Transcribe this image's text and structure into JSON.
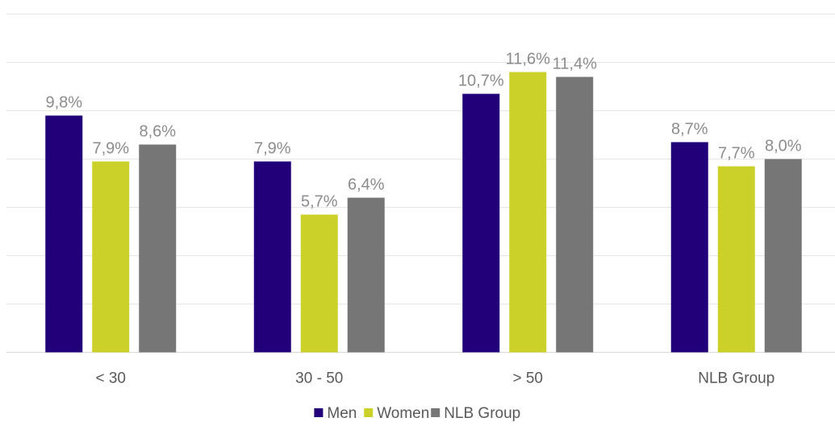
{
  "chart_data": {
    "type": "bar",
    "categories": [
      "< 30",
      "30 - 50",
      "> 50",
      "NLB Group"
    ],
    "series": [
      {
        "name": "Men",
        "color": "#22007a",
        "values": [
          9.8,
          7.9,
          10.7,
          8.7
        ],
        "labels": [
          "9,8%",
          "7,9%",
          "10,7%",
          "8,7%"
        ]
      },
      {
        "name": "Women",
        "color": "#ccd12a",
        "values": [
          7.9,
          5.7,
          11.6,
          7.7
        ],
        "labels": [
          "7,9%",
          "5,7%",
          "11,6%",
          "7,7%"
        ]
      },
      {
        "name": "NLB Group",
        "color": "#767676",
        "values": [
          8.6,
          6.4,
          11.4,
          8.0
        ],
        "labels": [
          "8,6%",
          "6,4%",
          "11,4%",
          "8,0%"
        ]
      }
    ],
    "ylim": [
      0,
      14
    ],
    "grid": true,
    "legend": "bottom-center"
  }
}
